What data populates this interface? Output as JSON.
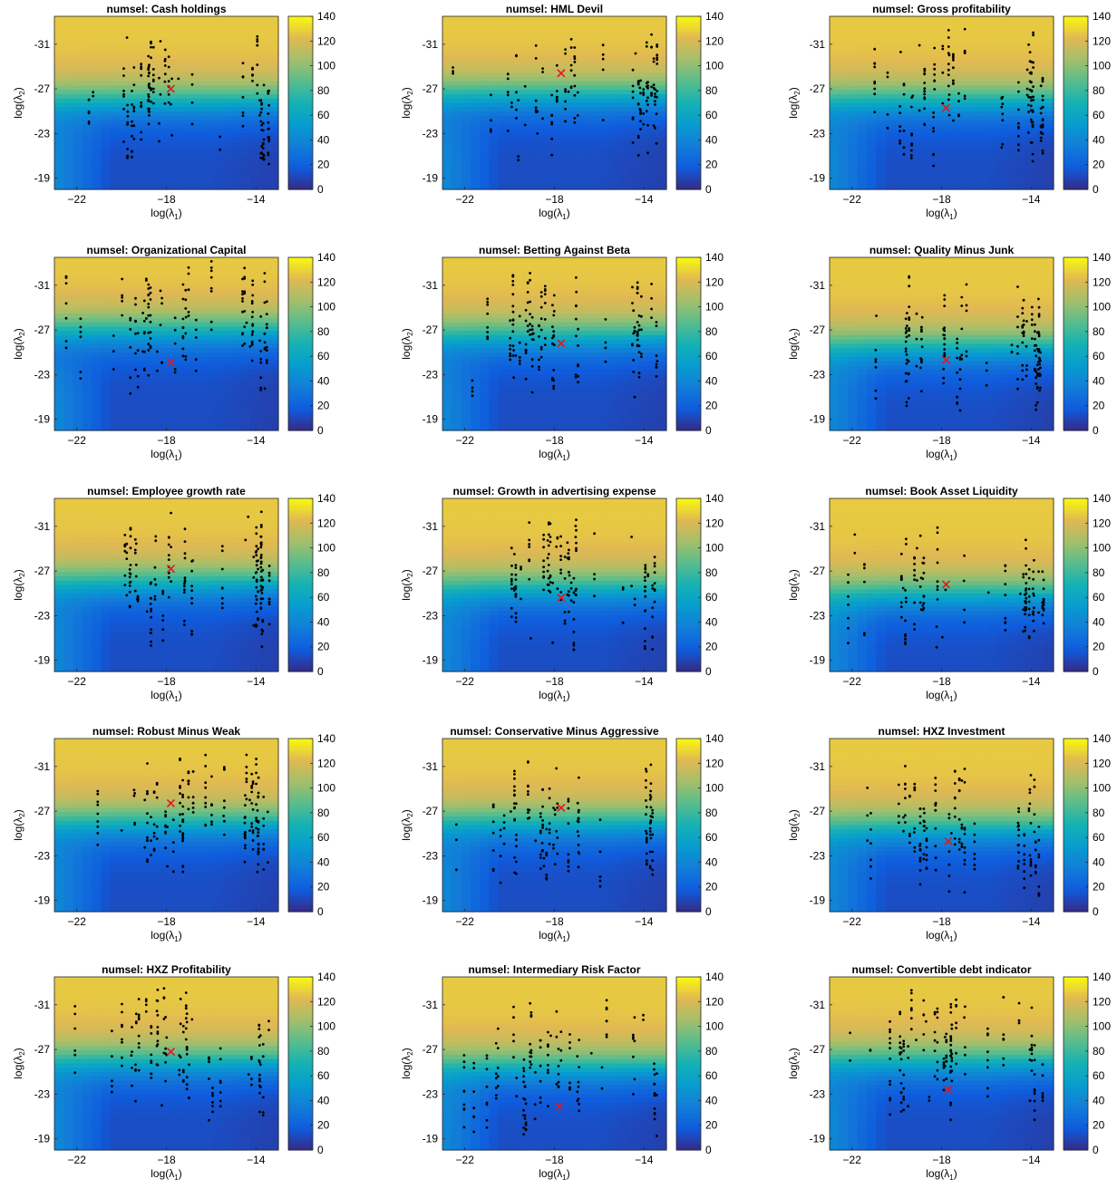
{
  "figure": {
    "title_prefix": "numsel: ",
    "xlabel": "log(λ1)",
    "ylabel": "log(λ2)",
    "colors": {
      "marker_dot": "#000000",
      "marker_cross": "#e8141c",
      "colormap": "parula"
    }
  },
  "chart_data": [
    {
      "type": "heatmap",
      "title": "numsel: Cash holdings",
      "xlabel": "log(λ1)",
      "ylabel": "log(λ2)",
      "xlim": [
        -23,
        -13
      ],
      "ylim": [
        -33.5,
        -18
      ],
      "y_reversed": true,
      "xticks": [
        -22,
        -18,
        -14
      ],
      "yticks": [
        -31,
        -27,
        -23,
        -19
      ],
      "clim": [
        0,
        140
      ],
      "colorbar_ticks": [
        0,
        20,
        40,
        60,
        80,
        100,
        120,
        140
      ],
      "transition_y": -26,
      "selected": {
        "x": -17.8,
        "y": -27.0
      }
    },
    {
      "type": "heatmap",
      "title": "numsel: HML Devil",
      "xlabel": "log(λ1)",
      "ylabel": "log(λ2)",
      "xlim": [
        -23,
        -13
      ],
      "ylim": [
        -33.5,
        -18
      ],
      "y_reversed": true,
      "xticks": [
        -22,
        -18,
        -14
      ],
      "yticks": [
        -31,
        -27,
        -23,
        -19
      ],
      "clim": [
        0,
        140
      ],
      "colorbar_ticks": [
        0,
        20,
        40,
        60,
        80,
        100,
        120,
        140
      ],
      "transition_y": -26.5,
      "selected": {
        "x": -17.7,
        "y": -28.4
      }
    },
    {
      "type": "heatmap",
      "title": "numsel: Gross profitability",
      "xlabel": "log(λ1)",
      "ylabel": "log(λ2)",
      "xlim": [
        -23,
        -13
      ],
      "ylim": [
        -33.5,
        -18
      ],
      "y_reversed": true,
      "xticks": [
        -22,
        -18,
        -14
      ],
      "yticks": [
        -31,
        -27,
        -23,
        -19
      ],
      "clim": [
        0,
        140
      ],
      "colorbar_ticks": [
        0,
        20,
        40,
        60,
        80,
        100,
        120,
        140
      ],
      "transition_y": -26,
      "selected": {
        "x": -17.8,
        "y": -25.3
      }
    },
    {
      "type": "heatmap",
      "title": "numsel: Organizational Capital",
      "xlabel": "log(λ1)",
      "ylabel": "log(λ2)",
      "xlim": [
        -23,
        -13
      ],
      "ylim": [
        -33.5,
        -18
      ],
      "y_reversed": true,
      "xticks": [
        -22,
        -18,
        -14
      ],
      "yticks": [
        -31,
        -27,
        -23,
        -19
      ],
      "clim": [
        0,
        140
      ],
      "colorbar_ticks": [
        0,
        20,
        40,
        60,
        80,
        100,
        120,
        140
      ],
      "transition_y": -27,
      "selected": {
        "x": -17.8,
        "y": -24.1
      }
    },
    {
      "type": "heatmap",
      "title": "numsel: Betting Against Beta",
      "xlabel": "log(λ1)",
      "ylabel": "log(λ2)",
      "xlim": [
        -23,
        -13
      ],
      "ylim": [
        -33.5,
        -18
      ],
      "y_reversed": true,
      "xticks": [
        -22,
        -18,
        -14
      ],
      "yticks": [
        -31,
        -27,
        -23,
        -19
      ],
      "clim": [
        0,
        140
      ],
      "colorbar_ticks": [
        0,
        20,
        40,
        60,
        80,
        100,
        120,
        140
      ],
      "transition_y": -26.5,
      "selected": {
        "x": -17.7,
        "y": -25.8
      }
    },
    {
      "type": "heatmap",
      "title": "numsel: Quality Minus Junk",
      "xlabel": "log(λ1)",
      "ylabel": "log(λ2)",
      "xlim": [
        -23,
        -13
      ],
      "ylim": [
        -33.5,
        -18
      ],
      "y_reversed": true,
      "xticks": [
        -22,
        -18,
        -14
      ],
      "yticks": [
        -31,
        -27,
        -23,
        -19
      ],
      "clim": [
        0,
        140
      ],
      "colorbar_ticks": [
        0,
        20,
        40,
        60,
        80,
        100,
        120,
        140
      ],
      "transition_y": -25.5,
      "selected": {
        "x": -17.8,
        "y": -24.3
      }
    },
    {
      "type": "heatmap",
      "title": "numsel: Employee growth rate",
      "xlabel": "log(λ1)",
      "ylabel": "log(λ2)",
      "xlim": [
        -23,
        -13
      ],
      "ylim": [
        -33.5,
        -18
      ],
      "y_reversed": true,
      "xticks": [
        -22,
        -18,
        -14
      ],
      "yticks": [
        -31,
        -27,
        -23,
        -19
      ],
      "clim": [
        0,
        140
      ],
      "colorbar_ticks": [
        0,
        20,
        40,
        60,
        80,
        100,
        120,
        140
      ],
      "transition_y": -26,
      "selected": {
        "x": -17.8,
        "y": -27.2
      }
    },
    {
      "type": "heatmap",
      "title": "numsel: Growth in advertising expense",
      "xlabel": "log(λ1)",
      "ylabel": "log(λ2)",
      "xlim": [
        -23,
        -13
      ],
      "ylim": [
        -33.5,
        -18
      ],
      "y_reversed": true,
      "xticks": [
        -22,
        -18,
        -14
      ],
      "yticks": [
        -31,
        -27,
        -23,
        -19
      ],
      "clim": [
        0,
        140
      ],
      "colorbar_ticks": [
        0,
        20,
        40,
        60,
        80,
        100,
        120,
        140
      ],
      "transition_y": -25.5,
      "selected": {
        "x": -17.7,
        "y": -24.6
      }
    },
    {
      "type": "heatmap",
      "title": "numsel: Book Asset Liquidity",
      "xlabel": "log(λ1)",
      "ylabel": "log(λ2)",
      "xlim": [
        -23,
        -13
      ],
      "ylim": [
        -33.5,
        -18
      ],
      "y_reversed": true,
      "xticks": [
        -22,
        -18,
        -14
      ],
      "yticks": [
        -31,
        -27,
        -23,
        -19
      ],
      "clim": [
        0,
        140
      ],
      "colorbar_ticks": [
        0,
        20,
        40,
        60,
        80,
        100,
        120,
        140
      ],
      "transition_y": -25,
      "selected": {
        "x": -17.8,
        "y": -25.8
      }
    },
    {
      "type": "heatmap",
      "title": "numsel: Robust Minus Weak",
      "xlabel": "log(λ1)",
      "ylabel": "log(λ2)",
      "xlim": [
        -23,
        -13
      ],
      "ylim": [
        -33.5,
        -18
      ],
      "y_reversed": true,
      "xticks": [
        -22,
        -18,
        -14
      ],
      "yticks": [
        -31,
        -27,
        -23,
        -19
      ],
      "clim": [
        0,
        140
      ],
      "colorbar_ticks": [
        0,
        20,
        40,
        60,
        80,
        100,
        120,
        140
      ],
      "transition_y": -26,
      "selected": {
        "x": -17.8,
        "y": -27.7
      }
    },
    {
      "type": "heatmap",
      "title": "numsel: Conservative Minus Aggressive",
      "xlabel": "log(λ1)",
      "ylabel": "log(λ2)",
      "xlim": [
        -23,
        -13
      ],
      "ylim": [
        -33.5,
        -18
      ],
      "y_reversed": true,
      "xticks": [
        -22,
        -18,
        -14
      ],
      "yticks": [
        -31,
        -27,
        -23,
        -19
      ],
      "clim": [
        0,
        140
      ],
      "colorbar_ticks": [
        0,
        20,
        40,
        60,
        80,
        100,
        120,
        140
      ],
      "transition_y": -26,
      "selected": {
        "x": -17.7,
        "y": -27.3
      }
    },
    {
      "type": "heatmap",
      "title": "numsel: HXZ Investment",
      "xlabel": "log(λ1)",
      "ylabel": "log(λ2)",
      "xlim": [
        -23,
        -13
      ],
      "ylim": [
        -33.5,
        -18
      ],
      "y_reversed": true,
      "xticks": [
        -22,
        -18,
        -14
      ],
      "yticks": [
        -31,
        -27,
        -23,
        -19
      ],
      "clim": [
        0,
        140
      ],
      "colorbar_ticks": [
        0,
        20,
        40,
        60,
        80,
        100,
        120,
        140
      ],
      "transition_y": -25.5,
      "selected": {
        "x": -17.7,
        "y": -24.3
      }
    },
    {
      "type": "heatmap",
      "title": "numsel: HXZ Profitability",
      "xlabel": "log(λ1)",
      "ylabel": "log(λ2)",
      "xlim": [
        -23,
        -13
      ],
      "ylim": [
        -33.5,
        -18
      ],
      "y_reversed": true,
      "xticks": [
        -22,
        -18,
        -14
      ],
      "yticks": [
        -31,
        -27,
        -23,
        -19
      ],
      "clim": [
        0,
        140
      ],
      "colorbar_ticks": [
        0,
        20,
        40,
        60,
        80,
        100,
        120,
        140
      ],
      "transition_y": -26,
      "selected": {
        "x": -17.8,
        "y": -26.8
      }
    },
    {
      "type": "heatmap",
      "title": "numsel: Intermediary Risk Factor",
      "xlabel": "log(λ1)",
      "ylabel": "log(λ2)",
      "xlim": [
        -23,
        -13
      ],
      "ylim": [
        -33.5,
        -18
      ],
      "y_reversed": true,
      "xticks": [
        -22,
        -18,
        -14
      ],
      "yticks": [
        -31,
        -27,
        -23,
        -19
      ],
      "clim": [
        0,
        140
      ],
      "colorbar_ticks": [
        0,
        20,
        40,
        60,
        80,
        100,
        120,
        140
      ],
      "transition_y": -25.5,
      "selected": {
        "x": -17.8,
        "y": -21.9
      }
    },
    {
      "type": "heatmap",
      "title": "numsel: Convertible debt indicator",
      "xlabel": "log(λ1)",
      "ylabel": "log(λ2)",
      "xlim": [
        -23,
        -13
      ],
      "ylim": [
        -33.5,
        -18
      ],
      "y_reversed": true,
      "xticks": [
        -22,
        -18,
        -14
      ],
      "yticks": [
        -31,
        -27,
        -23,
        -19
      ],
      "clim": [
        0,
        140
      ],
      "colorbar_ticks": [
        0,
        20,
        40,
        60,
        80,
        100,
        120,
        140
      ],
      "transition_y": -26,
      "selected": {
        "x": -17.7,
        "y": -23.4
      }
    }
  ]
}
